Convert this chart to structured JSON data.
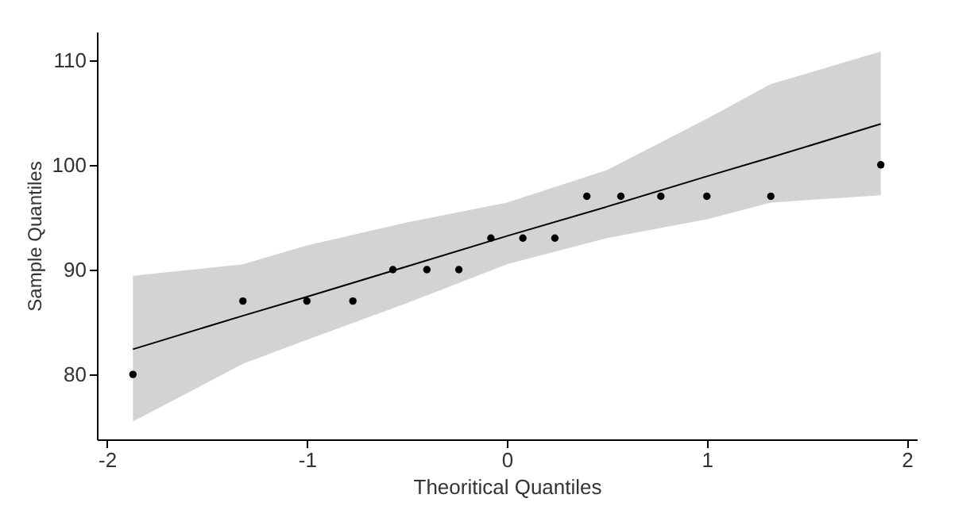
{
  "chart_data": {
    "type": "scatter",
    "xlabel": "Theoritical Quantiles",
    "ylabel": "Sample Quantiles",
    "xlim": [
      -2.05,
      2.05
    ],
    "xticks": [
      -2,
      -1,
      0,
      1,
      2
    ],
    "ylim": [
      73.8,
      112.7
    ],
    "yticks": [
      80,
      90,
      100,
      110
    ],
    "grid": false,
    "series": [
      {
        "type": "line",
        "color": "#000000",
        "x": [
          -1.87,
          -1.32,
          -1,
          -0.5,
          0,
          0.5,
          1,
          1.32,
          1.87
        ],
        "values": [
          82.4,
          85.6,
          87.4,
          90.3,
          93.2,
          96.0,
          98.9,
          100.7,
          103.9
        ],
        "lower": [
          75.5,
          81.0,
          83.3,
          86.8,
          90.5,
          93.0,
          94.8,
          96.4,
          97.1
        ],
        "upper": [
          89.4,
          90.5,
          92.3,
          94.5,
          96.4,
          99.5,
          104.4,
          107.7,
          110.8
        ],
        "line_style": "solid"
      },
      {
        "color": "#000000",
        "marker": "circle",
        "x": [
          -1.87,
          -1.32,
          -1.0,
          -0.77,
          -0.57,
          -0.4,
          -0.24,
          -0.08,
          0.08,
          0.24,
          0.4,
          0.57,
          0.77,
          1.0,
          1.32,
          1.87
        ],
        "values": [
          80,
          87,
          87,
          87,
          90,
          90,
          90,
          93,
          93,
          93,
          97,
          97,
          97,
          97,
          97,
          100
        ]
      }
    ]
  }
}
